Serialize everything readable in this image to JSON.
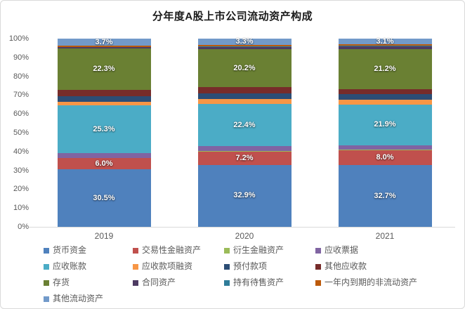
{
  "chart_data": {
    "type": "bar",
    "variant": "stacked-100-percent",
    "title": "分年度A股上市公司流动资产构成",
    "categories": [
      "2019",
      "2020",
      "2021"
    ],
    "series": [
      {
        "name": "货币资金",
        "color": "#4F81BD",
        "values": [
          30.5,
          32.9,
          32.7
        ],
        "labels_visible": true
      },
      {
        "name": "交易性金融资产",
        "color": "#C0504D",
        "values": [
          6.0,
          7.2,
          8.0
        ],
        "labels_visible": true
      },
      {
        "name": "衍生金融资产",
        "color": "#9BBB59",
        "values": [
          0.2,
          0.2,
          0.2
        ],
        "labels_visible": false
      },
      {
        "name": "应收票据",
        "color": "#8064A2",
        "values": [
          2.4,
          2.5,
          2.3
        ],
        "labels_visible": false
      },
      {
        "name": "应收账款",
        "color": "#4BACC6",
        "values": [
          25.3,
          22.4,
          21.9
        ],
        "labels_visible": true
      },
      {
        "name": "应收款项融资",
        "color": "#F79646",
        "values": [
          2.2,
          2.7,
          2.5
        ],
        "labels_visible": false
      },
      {
        "name": "预付款项",
        "color": "#2C4D75",
        "values": [
          2.9,
          3.0,
          2.8
        ],
        "labels_visible": false
      },
      {
        "name": "其他应收款",
        "color": "#772C2A",
        "values": [
          3.1,
          3.2,
          2.9
        ],
        "labels_visible": false
      },
      {
        "name": "存货",
        "color": "#6A8033",
        "values": [
          22.3,
          20.2,
          21.2
        ],
        "labels_visible": true
      },
      {
        "name": "合同资产",
        "color": "#4D3B62",
        "values": [
          0.5,
          1.4,
          1.6
        ],
        "labels_visible": false
      },
      {
        "name": "持有待售资产",
        "color": "#2F7C99",
        "values": [
          0.1,
          0.1,
          0.1
        ],
        "labels_visible": false
      },
      {
        "name": "一年内到期的非流动资产",
        "color": "#BC5A0B",
        "values": [
          0.8,
          0.9,
          0.7
        ],
        "labels_visible": false
      },
      {
        "name": "其他流动资产",
        "color": "#729ACA",
        "values": [
          3.7,
          3.3,
          3.1
        ],
        "labels_visible": true
      }
    ],
    "y_axis": {
      "min": 0,
      "max": 100,
      "step": 10,
      "ticks": [
        "0%",
        "10%",
        "20%",
        "30%",
        "40%",
        "50%",
        "60%",
        "70%",
        "80%",
        "90%",
        "100%"
      ]
    },
    "grid": false,
    "legend_position": "bottom",
    "data_label_format": "0.0%"
  },
  "colors": {
    "axis_text": "#595959",
    "axis_line": "#D9D9D9",
    "frame_border": "#D9D9D9",
    "title_text": "#1A1A1A",
    "data_label_text": "#FFFFFF",
    "background": "#FFFFFF"
  }
}
